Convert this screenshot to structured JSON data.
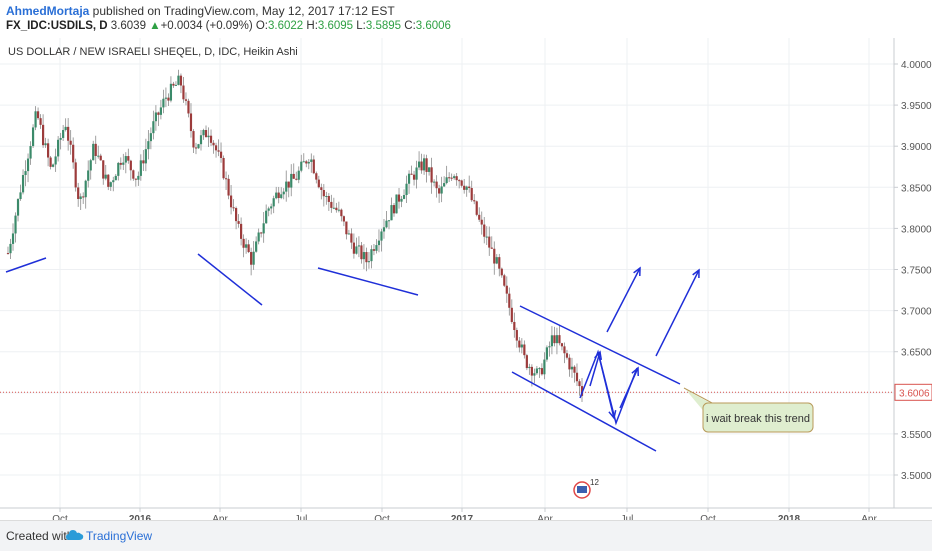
{
  "header": {
    "author": "AhmedMortaja",
    "published": " published on TradingView.com, May 12, 2017 17:12 EST",
    "symbol": "FX_IDC:USDILS, D",
    "last": "3.6039",
    "change_arrow": "▲",
    "change": "+0.0034 (+0.09%)",
    "o_label": "O:",
    "o_val": "3.6022",
    "h_label": "H:",
    "h_val": "3.6095",
    "l_label": "L:",
    "l_val": "3.5895",
    "c_label": "C:",
    "c_val": "3.6006"
  },
  "footer": {
    "created_with": "Created with",
    "brand": "TradingView"
  },
  "chart_data": {
    "type": "candlestick",
    "title": "US DOLLAR / NEW ISRAELI SHEQEL, D, IDC, Heikin Ashi",
    "ylim": [
      3.47,
      4.02
    ],
    "y_ticks": [
      "4.0000",
      "3.9500",
      "3.9000",
      "3.8500",
      "3.8000",
      "3.7500",
      "3.7000",
      "3.6500",
      "3.6000",
      "3.5500",
      "3.5000"
    ],
    "x_ticks": [
      "Oct",
      "2016",
      "Apr",
      "Jul",
      "Oct",
      "2017",
      "Apr",
      "Jul",
      "Oct",
      "2018",
      "Apr"
    ],
    "current_price": "3.6006",
    "price_path": [
      {
        "t": 0,
        "p": 3.77
      },
      {
        "t": 1,
        "p": 3.86
      },
      {
        "t": 2,
        "p": 3.94
      },
      {
        "t": 3,
        "p": 3.87
      },
      {
        "t": 4,
        "p": 3.93
      },
      {
        "t": 5,
        "p": 3.83
      },
      {
        "t": 6,
        "p": 3.9
      },
      {
        "t": 7,
        "p": 3.85
      },
      {
        "t": 8,
        "p": 3.89
      },
      {
        "t": 9,
        "p": 3.86
      },
      {
        "t": 10,
        "p": 3.92
      },
      {
        "t": 11,
        "p": 3.96
      },
      {
        "t": 12,
        "p": 3.98
      },
      {
        "t": 13,
        "p": 3.9
      },
      {
        "t": 14,
        "p": 3.92
      },
      {
        "t": 15,
        "p": 3.87
      },
      {
        "t": 16,
        "p": 3.8
      },
      {
        "t": 17,
        "p": 3.76
      },
      {
        "t": 18,
        "p": 3.82
      },
      {
        "t": 19,
        "p": 3.85
      },
      {
        "t": 20,
        "p": 3.86
      },
      {
        "t": 21,
        "p": 3.89
      },
      {
        "t": 22,
        "p": 3.84
      },
      {
        "t": 23,
        "p": 3.82
      },
      {
        "t": 24,
        "p": 3.78
      },
      {
        "t": 25,
        "p": 3.76
      },
      {
        "t": 26,
        "p": 3.8
      },
      {
        "t": 27,
        "p": 3.83
      },
      {
        "t": 28,
        "p": 3.86
      },
      {
        "t": 29,
        "p": 3.88
      },
      {
        "t": 30,
        "p": 3.84
      },
      {
        "t": 31,
        "p": 3.87
      },
      {
        "t": 32,
        "p": 3.85
      },
      {
        "t": 33,
        "p": 3.8
      },
      {
        "t": 34,
        "p": 3.76
      },
      {
        "t": 35,
        "p": 3.7
      },
      {
        "t": 36,
        "p": 3.64
      },
      {
        "t": 37,
        "p": 3.62
      },
      {
        "t": 38,
        "p": 3.67
      },
      {
        "t": 39,
        "p": 3.64
      },
      {
        "t": 40,
        "p": 3.6
      }
    ],
    "annotations": [
      {
        "text": "i wait break this trend"
      }
    ],
    "event_badge": "12"
  }
}
